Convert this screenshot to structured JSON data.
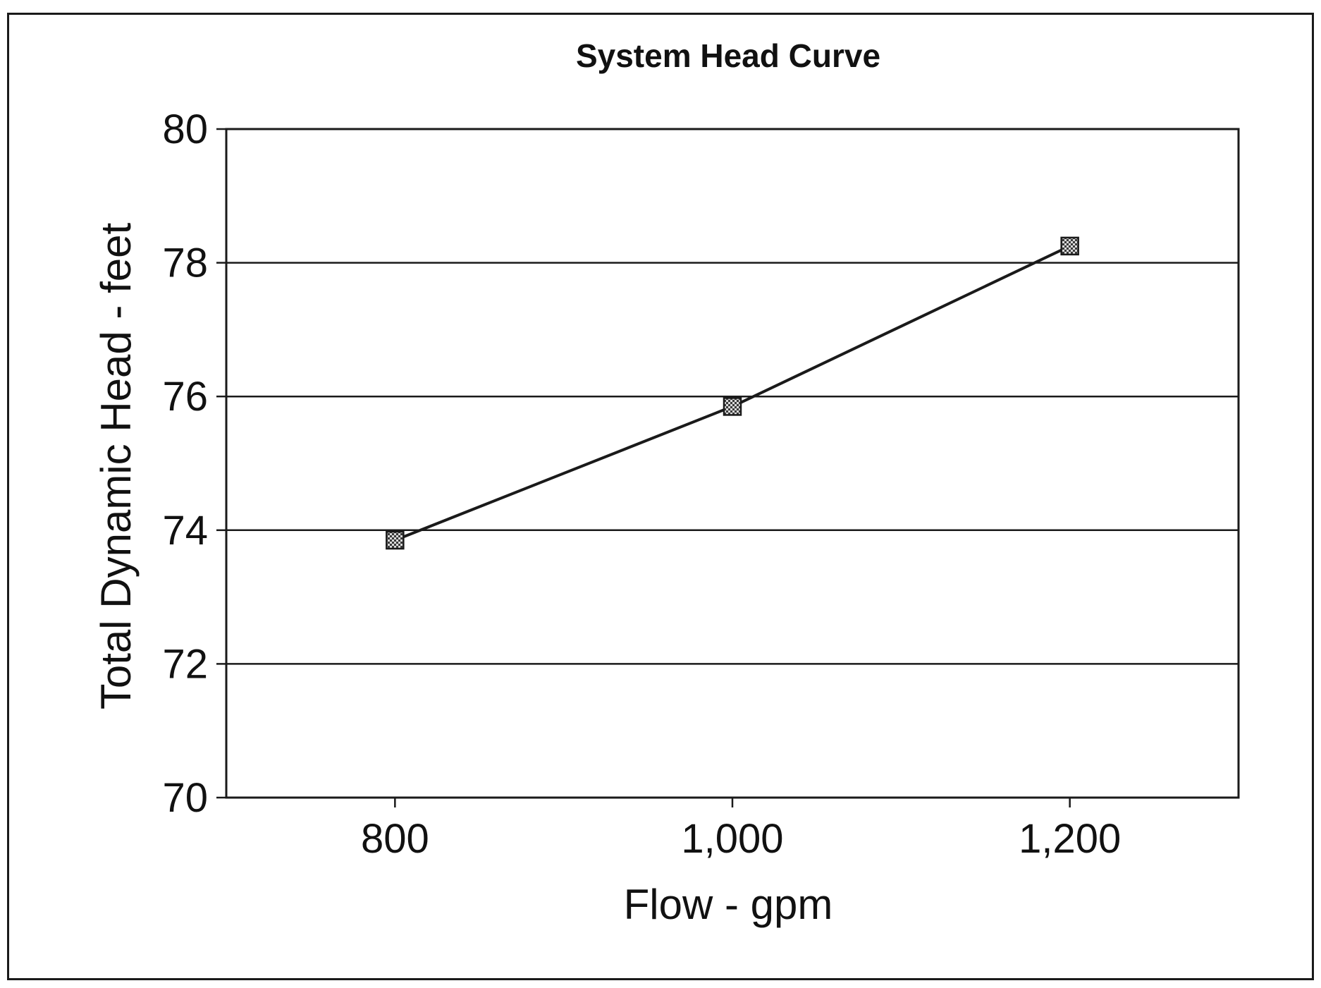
{
  "chart_data": {
    "type": "line",
    "title": "System Head Curve",
    "xlabel": "Flow - gpm",
    "ylabel": "Total Dynamic Head - feet",
    "x_ticks": [
      "800",
      "1,000",
      "1,200"
    ],
    "y_ticks": [
      "70",
      "72",
      "74",
      "76",
      "78",
      "80"
    ],
    "xlim": [
      700,
      1300
    ],
    "ylim": [
      70,
      80
    ],
    "grid": "horizontal",
    "legend": "none",
    "series": [
      {
        "x": [
          800,
          1000,
          1200
        ],
        "y": [
          73.85,
          75.85,
          78.25
        ],
        "color": "#1a1a1a",
        "marker": "square-hatched"
      }
    ]
  }
}
